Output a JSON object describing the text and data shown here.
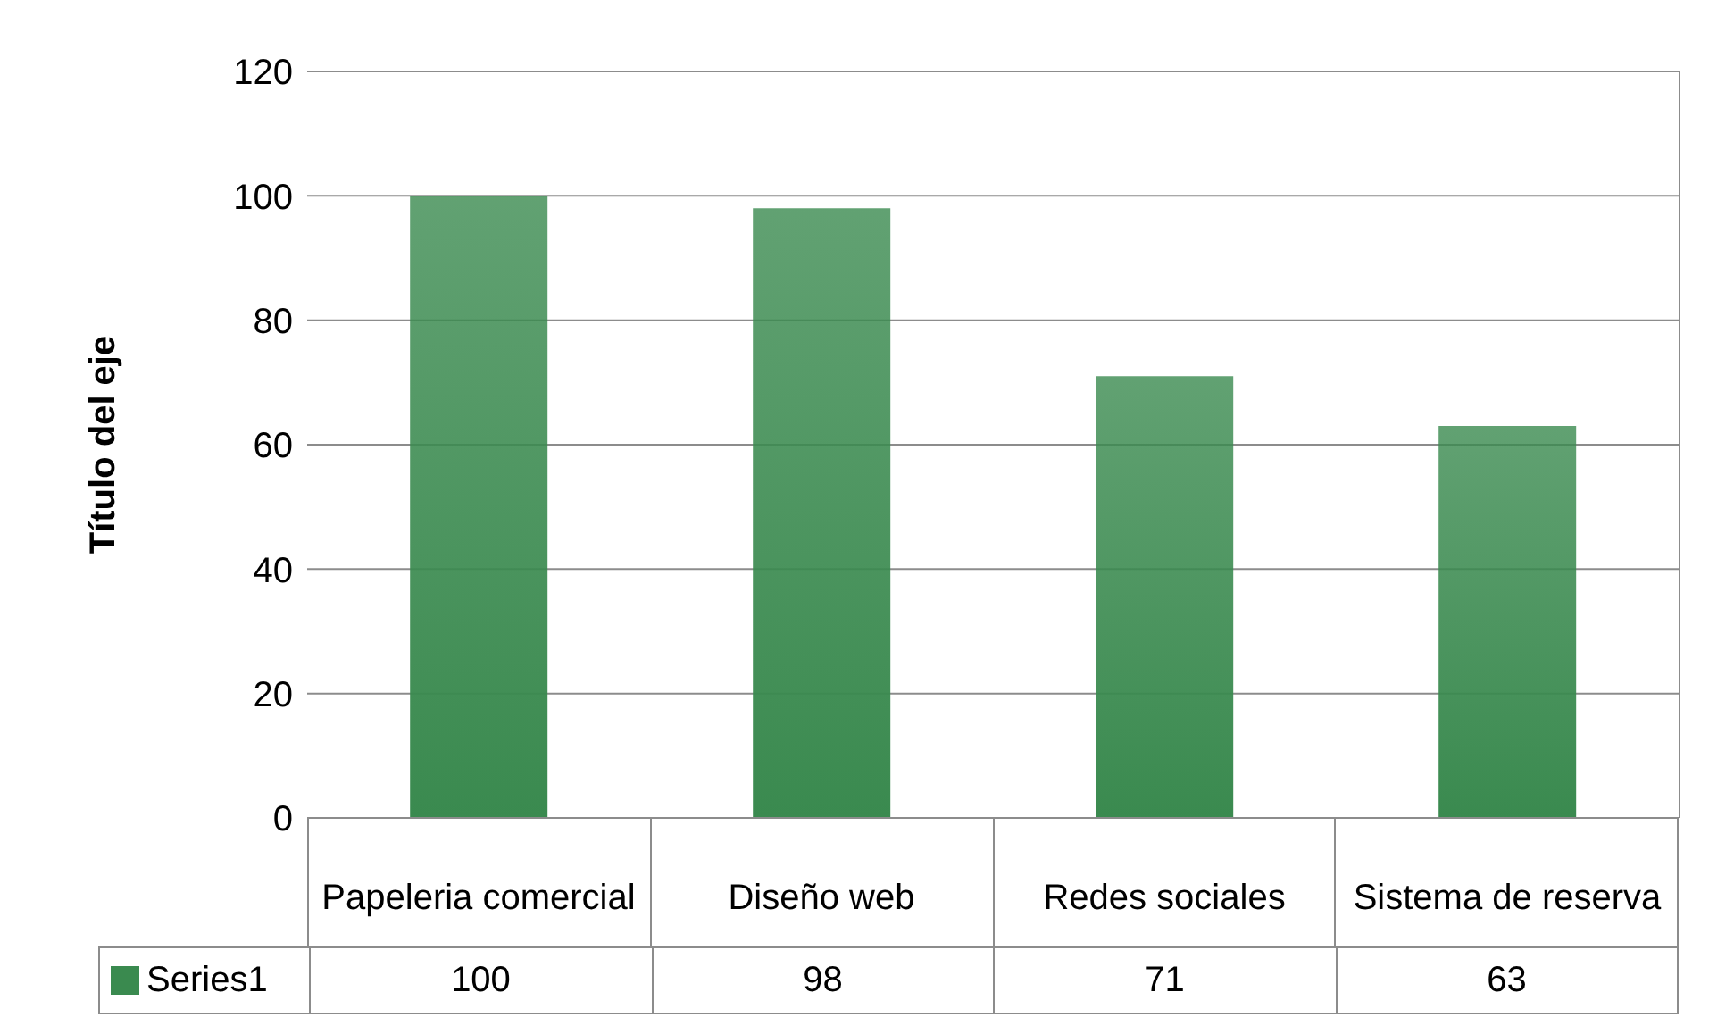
{
  "chart_data": {
    "type": "bar",
    "ylabel": "Título del eje",
    "categories": [
      "Papeleria comercial",
      "Diseño web",
      "Redes sociales",
      "Sistema de reserva"
    ],
    "series": [
      {
        "name": "Series1",
        "color": "#3a8a4f",
        "values": [
          100,
          98,
          71,
          63
        ]
      }
    ],
    "ylim": [
      0,
      120
    ],
    "yticks": [
      0,
      20,
      40,
      60,
      80,
      100,
      120
    ],
    "grid": "y",
    "legend": "bottom",
    "data_labels": true
  }
}
